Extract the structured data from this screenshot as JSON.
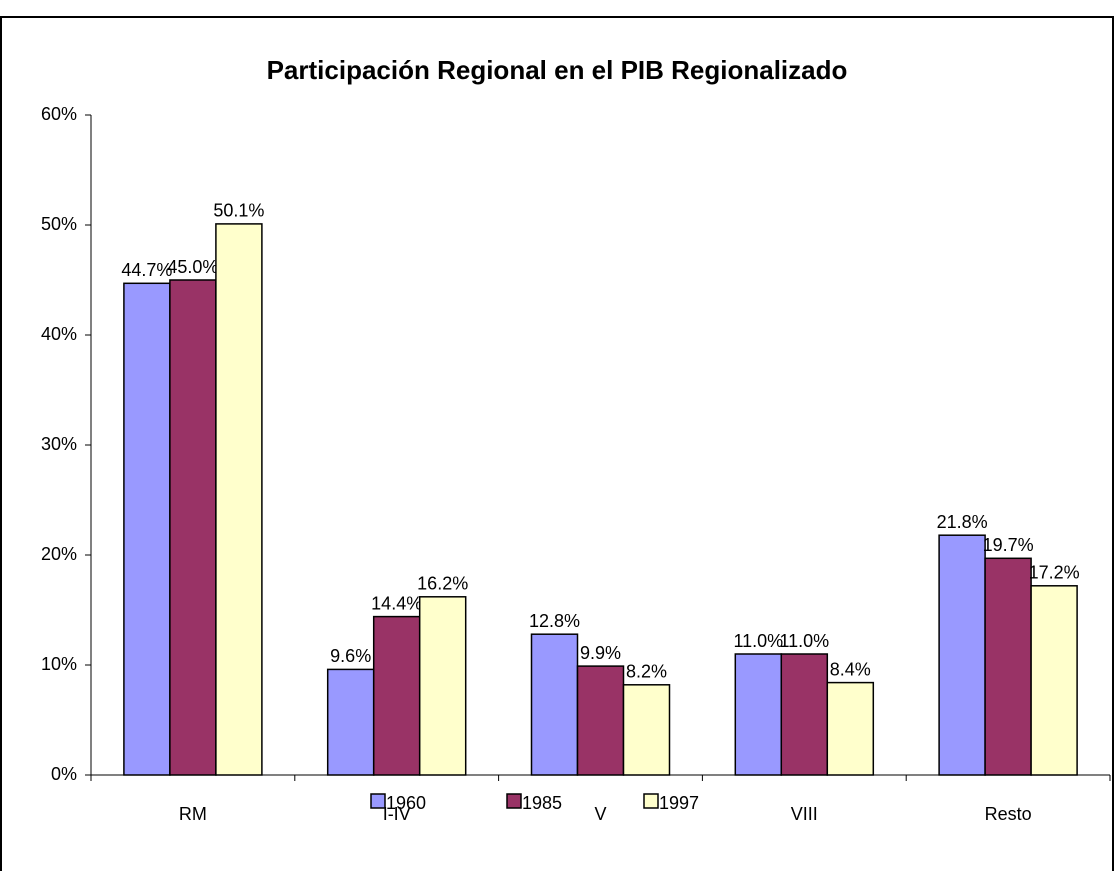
{
  "chart_data": {
    "type": "bar",
    "title": "Participación Regional en el PIB Regionalizado",
    "categories": [
      "RM",
      "I-IV",
      "V",
      "VIII",
      "Resto"
    ],
    "series": [
      {
        "name": "1960",
        "color": "#9999ff",
        "values": [
          44.7,
          9.6,
          12.8,
          11.0,
          21.8
        ],
        "value_labels": [
          "44.7%",
          "9.6%",
          "12.8%",
          "11.0%",
          "21.8%"
        ]
      },
      {
        "name": "1985",
        "color": "#993366",
        "values": [
          45.0,
          14.4,
          9.9,
          11.0,
          19.7
        ],
        "value_labels": [
          "45.0%",
          "14.4%",
          "9.9%",
          "11.0%",
          "19.7%"
        ]
      },
      {
        "name": "1997",
        "color": "#ffffcc",
        "values": [
          50.1,
          16.2,
          8.2,
          8.4,
          17.2
        ],
        "value_labels": [
          "50.1%",
          "16.2%",
          "8.2%",
          "8.4%",
          "17.2%"
        ]
      }
    ],
    "ylim": [
      0,
      60
    ],
    "yticks": [
      {
        "value": 0,
        "label": "0%"
      },
      {
        "value": 10,
        "label": "10%"
      },
      {
        "value": 20,
        "label": "20%"
      },
      {
        "value": 30,
        "label": "30%"
      },
      {
        "value": 40,
        "label": "40%"
      },
      {
        "value": 50,
        "label": "50%"
      },
      {
        "value": 60,
        "label": "60%"
      }
    ],
    "legend": "bottom"
  }
}
